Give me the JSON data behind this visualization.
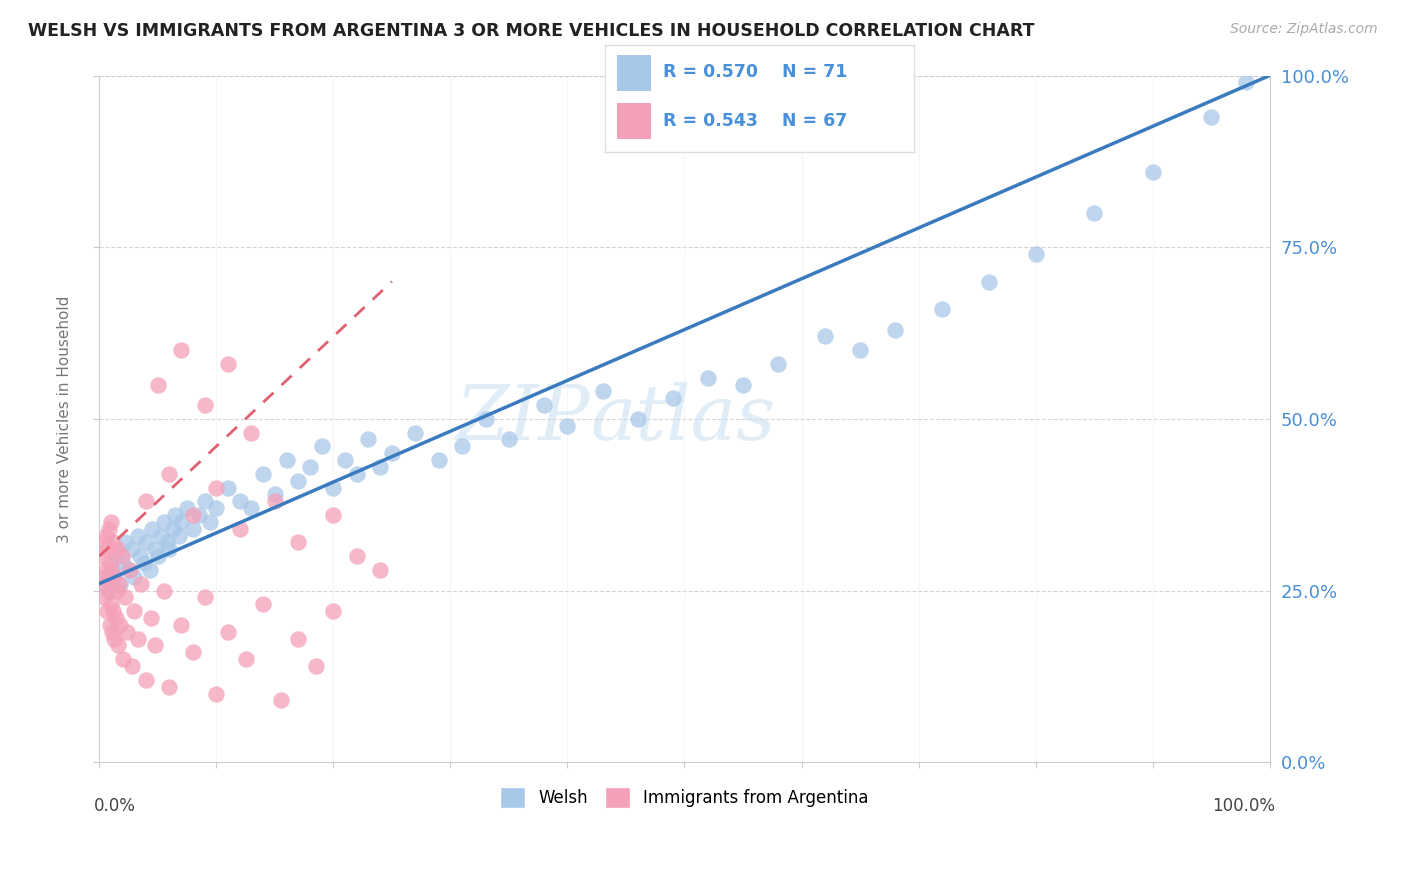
{
  "title": "WELSH VS IMMIGRANTS FROM ARGENTINA 3 OR MORE VEHICLES IN HOUSEHOLD CORRELATION CHART",
  "source": "Source: ZipAtlas.com",
  "ylabel": "3 or more Vehicles in Household",
  "xlim": [
    0.0,
    1.0
  ],
  "ylim": [
    0.0,
    1.0
  ],
  "yticks_right": [
    0.0,
    0.25,
    0.5,
    0.75,
    1.0
  ],
  "ytick_labels_right": [
    "0.0%",
    "25.0%",
    "50.0%",
    "75.0%",
    "100.0%"
  ],
  "legend_welsh_R": "R = 0.570",
  "legend_welsh_N": "N = 71",
  "legend_arg_R": "R = 0.543",
  "legend_arg_N": "N = 67",
  "welsh_color": "#a8c8e8",
  "arg_color": "#f4a0b8",
  "welsh_line_color": "#3a7abf",
  "arg_line_color": "#e06070",
  "watermark": "ZIPAtlas",
  "background_color": "#ffffff",
  "welsh_x": [
    0.005,
    0.008,
    0.01,
    0.012,
    0.015,
    0.018,
    0.02,
    0.022,
    0.025,
    0.028,
    0.03,
    0.033,
    0.035,
    0.038,
    0.04,
    0.043,
    0.045,
    0.048,
    0.05,
    0.053,
    0.055,
    0.058,
    0.06,
    0.063,
    0.065,
    0.068,
    0.07,
    0.075,
    0.08,
    0.085,
    0.09,
    0.095,
    0.1,
    0.11,
    0.12,
    0.13,
    0.14,
    0.15,
    0.16,
    0.17,
    0.18,
    0.19,
    0.2,
    0.21,
    0.22,
    0.23,
    0.24,
    0.25,
    0.27,
    0.29,
    0.31,
    0.33,
    0.35,
    0.38,
    0.4,
    0.43,
    0.46,
    0.49,
    0.52,
    0.55,
    0.58,
    0.62,
    0.65,
    0.68,
    0.72,
    0.76,
    0.8,
    0.85,
    0.9,
    0.95,
    0.98
  ],
  "welsh_y": [
    0.26,
    0.25,
    0.28,
    0.27,
    0.3,
    0.26,
    0.29,
    0.32,
    0.28,
    0.31,
    0.27,
    0.33,
    0.3,
    0.29,
    0.32,
    0.28,
    0.34,
    0.31,
    0.3,
    0.33,
    0.35,
    0.32,
    0.31,
    0.34,
    0.36,
    0.33,
    0.35,
    0.37,
    0.34,
    0.36,
    0.38,
    0.35,
    0.37,
    0.4,
    0.38,
    0.37,
    0.42,
    0.39,
    0.44,
    0.41,
    0.43,
    0.46,
    0.4,
    0.44,
    0.42,
    0.47,
    0.43,
    0.45,
    0.48,
    0.44,
    0.46,
    0.5,
    0.47,
    0.52,
    0.49,
    0.54,
    0.5,
    0.53,
    0.56,
    0.55,
    0.58,
    0.62,
    0.6,
    0.63,
    0.66,
    0.7,
    0.74,
    0.8,
    0.86,
    0.94,
    0.99
  ],
  "arg_x": [
    0.002,
    0.003,
    0.004,
    0.005,
    0.005,
    0.006,
    0.006,
    0.007,
    0.007,
    0.008,
    0.008,
    0.009,
    0.009,
    0.01,
    0.01,
    0.011,
    0.011,
    0.012,
    0.012,
    0.013,
    0.013,
    0.014,
    0.015,
    0.015,
    0.016,
    0.017,
    0.018,
    0.019,
    0.02,
    0.022,
    0.024,
    0.026,
    0.028,
    0.03,
    0.033,
    0.036,
    0.04,
    0.044,
    0.048,
    0.055,
    0.06,
    0.07,
    0.08,
    0.09,
    0.1,
    0.11,
    0.125,
    0.14,
    0.155,
    0.17,
    0.185,
    0.2,
    0.04,
    0.06,
    0.08,
    0.1,
    0.12,
    0.15,
    0.17,
    0.2,
    0.22,
    0.24,
    0.05,
    0.07,
    0.09,
    0.11,
    0.13
  ],
  "arg_y": [
    0.27,
    0.3,
    0.24,
    0.32,
    0.26,
    0.28,
    0.33,
    0.22,
    0.31,
    0.25,
    0.34,
    0.2,
    0.29,
    0.23,
    0.35,
    0.19,
    0.28,
    0.22,
    0.32,
    0.18,
    0.27,
    0.21,
    0.25,
    0.31,
    0.17,
    0.26,
    0.2,
    0.3,
    0.15,
    0.24,
    0.19,
    0.28,
    0.14,
    0.22,
    0.18,
    0.26,
    0.12,
    0.21,
    0.17,
    0.25,
    0.11,
    0.2,
    0.16,
    0.24,
    0.1,
    0.19,
    0.15,
    0.23,
    0.09,
    0.18,
    0.14,
    0.22,
    0.38,
    0.42,
    0.36,
    0.4,
    0.34,
    0.38,
    0.32,
    0.36,
    0.3,
    0.28,
    0.55,
    0.6,
    0.52,
    0.58,
    0.48
  ],
  "welsh_line_x0": 0.0,
  "welsh_line_y0": 0.26,
  "welsh_line_x1": 1.0,
  "welsh_line_y1": 1.0,
  "arg_line_x0": 0.0,
  "arg_line_y0": 0.3,
  "arg_line_x1": 0.25,
  "arg_line_y1": 0.7
}
